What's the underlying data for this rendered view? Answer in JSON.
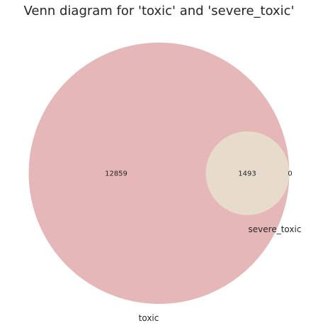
{
  "chart_data": {
    "type": "venn",
    "title": "Venn diagram for 'toxic' and 'severe_toxic'",
    "sets": [
      {
        "name": "toxic",
        "color": "#e5b7b8"
      },
      {
        "name": "severe_toxic",
        "color": "#e7dccb"
      }
    ],
    "regions": {
      "only_first": 12859,
      "intersection": 1493,
      "only_second": 0
    },
    "legend": "none",
    "grid": false
  }
}
